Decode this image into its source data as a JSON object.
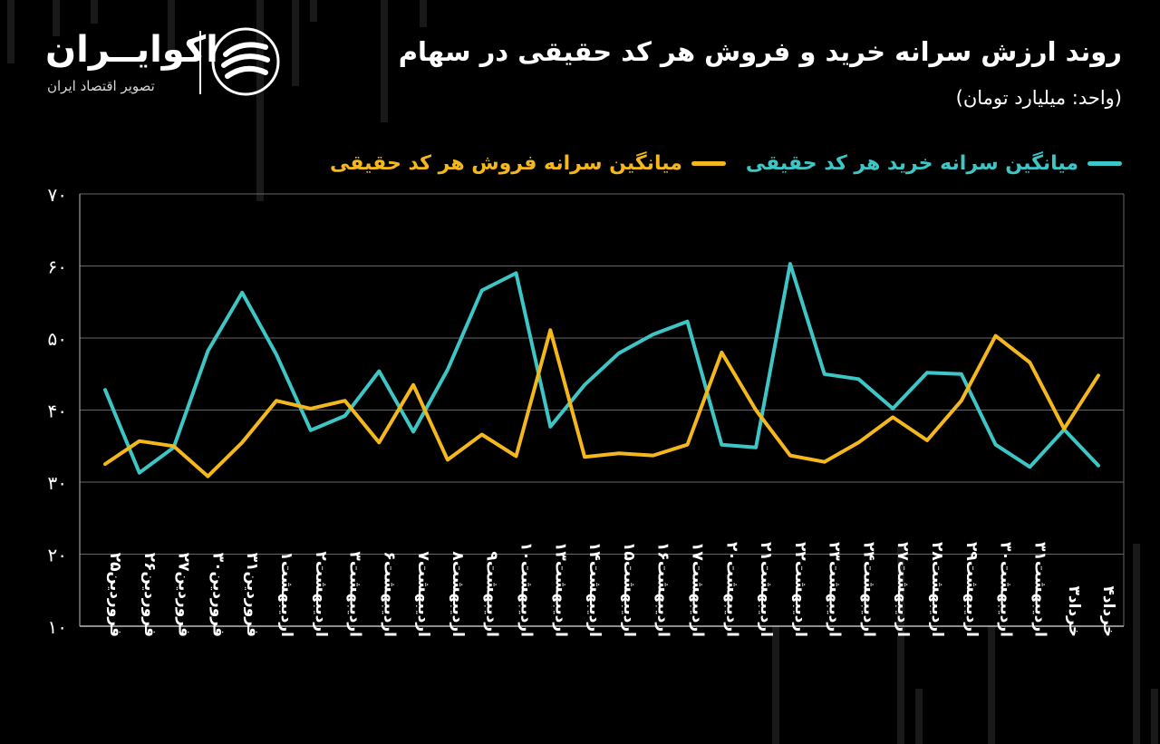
{
  "header": {
    "title": "روند ارزش سرانه خرید و فروش هر کد حقیقی در سهام",
    "subtitle": "(واحد: میلیارد تومان)"
  },
  "brand": {
    "name": "اکوایــران",
    "tagline": "تصویر اقتصاد ایران",
    "logo_icon": "ecoiran-swirl-logo"
  },
  "colors": {
    "background": "#000000",
    "buy": "#3ec6c6",
    "sell": "#f4b81c",
    "grid": "#666666",
    "axis": "#bbbbbb",
    "text": "#ffffff"
  },
  "chart_data": {
    "type": "line",
    "title": "روند ارزش سرانه خرید و فروش هر کد حقیقی در سهام",
    "subtitle": "(واحد: میلیارد تومان)",
    "xlabel": "",
    "ylabel": "",
    "ylim": [
      10,
      70
    ],
    "yticks": [
      10,
      20,
      30,
      40,
      50,
      60,
      70
    ],
    "ytick_labels": [
      "۱۰",
      "۲۰",
      "۳۰",
      "۴۰",
      "۵۰",
      "۶۰",
      "۷۰"
    ],
    "grid": true,
    "legend_position": "top-right",
    "categories": [
      "فروردین۲۵",
      "فروردین۲۶",
      "فروردین۲۷",
      "فروردین۳۰",
      "فروردین۳۱",
      "اردیبهشت۱",
      "اردیبهشت۲",
      "اردیبهشت۳",
      "اردیبهشت۶",
      "اردیبهشت۷",
      "اردیبهشت۸",
      "اردیبهشت۹",
      "اردیبهشت۱۰",
      "اردیبهشت۱۳",
      "اردیبهشت۱۴",
      "اردیبهشت۱۵",
      "اردیبهشت۱۶",
      "اردیبهشت۱۷",
      "اردیبهشت۲۰",
      "اردیبهشت۲۱",
      "اردیبهشت۲۲",
      "اردیبهشت۲۳",
      "اردیبهشت۲۴",
      "اردیبهشت۲۷",
      "اردیبهشت۲۸",
      "اردیبهشت۲۹",
      "اردیبهشت۳۰",
      "اردیبهشت۳۱",
      "خرداد۳",
      "خرداد۴"
    ],
    "series": [
      {
        "name": "میانگین سرانه خرید هر کد حقیقی",
        "color": "#3ec6c6",
        "values": [
          42.8,
          31.3,
          34.8,
          48.2,
          56.3,
          47.7,
          37.2,
          39.2,
          45.4,
          37.0,
          45.6,
          56.6,
          59.0,
          37.7,
          43.5,
          47.9,
          50.5,
          52.3,
          35.2,
          34.8,
          60.3,
          45.0,
          44.3,
          40.2,
          45.2,
          45.0,
          35.2,
          32.1,
          37.3,
          32.3
        ]
      },
      {
        "name": "میانگین سرانه فروش هر کد حقیقی",
        "color": "#f4b81c",
        "values": [
          32.5,
          35.7,
          35.0,
          30.8,
          35.5,
          41.3,
          40.2,
          41.3,
          35.5,
          43.5,
          33.1,
          36.6,
          33.6,
          51.1,
          33.5,
          34.0,
          33.7,
          35.2,
          48.0,
          40.0,
          33.7,
          32.8,
          35.5,
          39.0,
          35.8,
          41.3,
          50.3,
          46.6,
          37.4,
          44.8
        ]
      }
    ]
  }
}
